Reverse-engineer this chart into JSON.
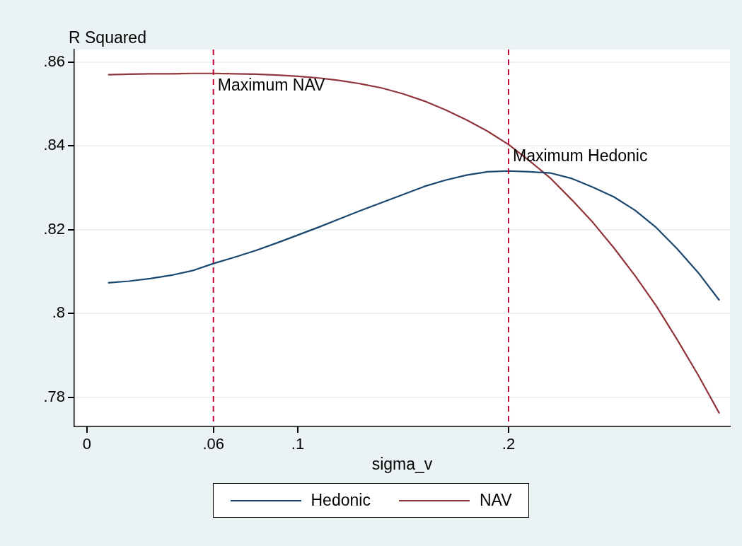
{
  "chart_data": {
    "type": "line",
    "ylabel": "R Squared",
    "xlabel": "sigma_v",
    "x": [
      0.01,
      0.02,
      0.03,
      0.04,
      0.05,
      0.06,
      0.07,
      0.08,
      0.09,
      0.1,
      0.11,
      0.12,
      0.13,
      0.14,
      0.15,
      0.16,
      0.17,
      0.18,
      0.19,
      0.2,
      0.21,
      0.22,
      0.23,
      0.24,
      0.25,
      0.26,
      0.27,
      0.28,
      0.29,
      0.3
    ],
    "series": [
      {
        "name": "Hedonic",
        "color": "#1a476f",
        "values": [
          0.8073,
          0.8077,
          0.8083,
          0.8091,
          0.8102,
          0.8119,
          0.8134,
          0.815,
          0.8168,
          0.8187,
          0.8206,
          0.8226,
          0.8246,
          0.8265,
          0.8284,
          0.8303,
          0.8318,
          0.833,
          0.8338,
          0.834,
          0.8338,
          0.8335,
          0.8322,
          0.8301,
          0.8278,
          0.8246,
          0.8205,
          0.8154,
          0.8097,
          0.8031
        ]
      },
      {
        "name": "NAV",
        "color": "#90353b",
        "values": [
          0.857,
          0.8571,
          0.8572,
          0.8572,
          0.8573,
          0.8573,
          0.8572,
          0.8571,
          0.8569,
          0.8566,
          0.8562,
          0.8556,
          0.8548,
          0.8538,
          0.8524,
          0.8507,
          0.8486,
          0.8462,
          0.8435,
          0.8403,
          0.8364,
          0.8322,
          0.8271,
          0.8217,
          0.8156,
          0.809,
          0.8018,
          0.7937,
          0.7852,
          0.7761
        ]
      }
    ],
    "xlim": [
      -0.006,
      0.305
    ],
    "xticks": [
      0,
      {
        "value": 0.06,
        "label": ".06"
      },
      {
        "value": 0.1,
        "label": ".1"
      },
      {
        "value": 0.2,
        "label": ".2"
      }
    ],
    "ylim": [
      0.773,
      0.863
    ],
    "yticks": [
      {
        "value": 0.78,
        "label": ".78"
      },
      {
        "value": 0.8,
        "label": ".8"
      },
      {
        "value": 0.82,
        "label": ".82"
      },
      {
        "value": 0.84,
        "label": ".84"
      },
      {
        "value": 0.86,
        "label": ".86"
      }
    ],
    "ref_lines": [
      {
        "axis": "x",
        "value": 0.06,
        "label": "Maximum NAV",
        "color": "#c10534",
        "line_style": "dashed"
      },
      {
        "axis": "x",
        "value": 0.2,
        "label": "Maximum Hedonic",
        "color": "#c10534",
        "line_style": "dashed"
      }
    ],
    "grid": "y",
    "legend": "bottom",
    "marker": "none",
    "line_style": "solid"
  }
}
